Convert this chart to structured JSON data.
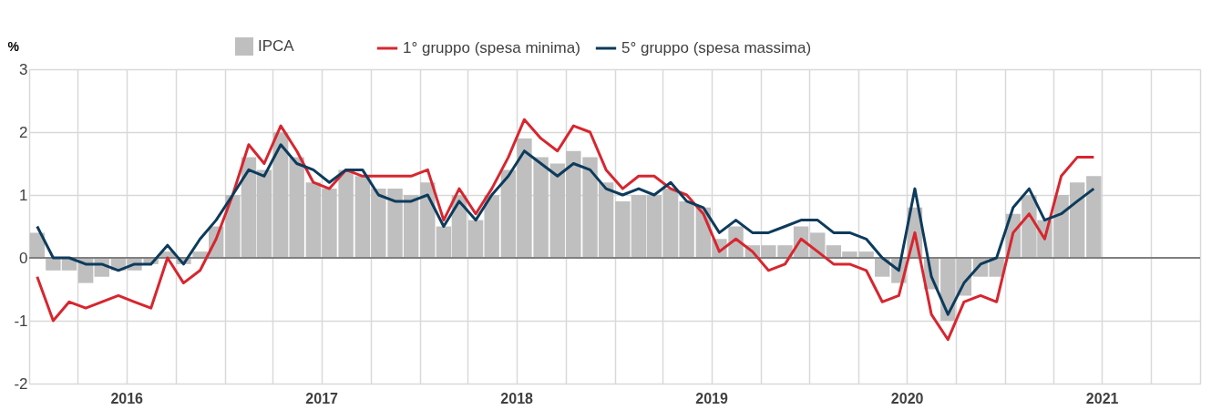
{
  "chart_data": {
    "type": "bar",
    "ylabel": "%",
    "ylim": [
      -2,
      3
    ],
    "yticks": [
      -2,
      -1,
      0,
      1,
      2,
      3
    ],
    "xlim": [
      "2016-01",
      "2022-01"
    ],
    "xticks": [
      {
        "value": "2016-01",
        "label": null
      },
      {
        "value": "2016-04",
        "label": null
      },
      {
        "value": "2016-07",
        "label": "2016"
      },
      {
        "value": "2016-10",
        "label": null
      },
      {
        "value": "2017-01",
        "label": null
      },
      {
        "value": "2017-04",
        "label": null
      },
      {
        "value": "2017-07",
        "label": "2017"
      },
      {
        "value": "2017-10",
        "label": null
      },
      {
        "value": "2018-01",
        "label": null
      },
      {
        "value": "2018-04",
        "label": null
      },
      {
        "value": "2018-07",
        "label": "2018"
      },
      {
        "value": "2018-10",
        "label": null
      },
      {
        "value": "2019-01",
        "label": null
      },
      {
        "value": "2019-04",
        "label": null
      },
      {
        "value": "2019-07",
        "label": "2019"
      },
      {
        "value": "2019-10",
        "label": null
      },
      {
        "value": "2020-01",
        "label": null
      },
      {
        "value": "2020-04",
        "label": null
      },
      {
        "value": "2020-07",
        "label": "2020"
      },
      {
        "value": "2020-10",
        "label": null
      },
      {
        "value": "2021-01",
        "label": null
      },
      {
        "value": "2021-04",
        "label": null
      },
      {
        "value": "2021-07",
        "label": "2021"
      },
      {
        "value": "2021-10",
        "label": null
      },
      {
        "value": "2022-01",
        "label": null
      }
    ],
    "x": [
      "2016-01-16",
      "2016-02-15",
      "2016-03-16",
      "2016-04-16",
      "2016-05-16",
      "2016-06-16",
      "2016-07-16",
      "2016-08-16",
      "2016-09-16",
      "2016-10-16",
      "2016-11-16",
      "2016-12-16",
      "2017-01-16",
      "2017-02-15",
      "2017-03-16",
      "2017-04-16",
      "2017-05-16",
      "2017-06-16",
      "2017-07-16",
      "2017-08-16",
      "2017-09-16",
      "2017-10-16",
      "2017-11-16",
      "2017-12-16",
      "2018-01-16",
      "2018-02-15",
      "2018-03-16",
      "2018-04-16",
      "2018-05-16",
      "2018-06-16",
      "2018-07-16",
      "2018-08-16",
      "2018-09-16",
      "2018-10-16",
      "2018-11-16",
      "2018-12-16",
      "2019-01-16",
      "2019-02-15",
      "2019-03-16",
      "2019-04-16",
      "2019-05-16",
      "2019-06-16",
      "2019-07-16",
      "2019-08-16",
      "2019-09-16",
      "2019-10-16",
      "2019-11-16",
      "2019-12-16",
      "2020-01-16",
      "2020-02-15",
      "2020-03-16",
      "2020-04-16",
      "2020-05-16",
      "2020-06-16",
      "2020-07-16",
      "2020-08-16",
      "2020-09-16",
      "2020-10-16",
      "2020-11-16",
      "2020-12-16",
      "2021-01-16",
      "2021-02-15",
      "2021-03-16",
      "2021-04-16",
      "2021-05-16",
      "2021-06-16"
    ],
    "series": [
      {
        "name": "IPCA",
        "color": "#bfbfbf",
        "values": [
          0.4,
          -0.2,
          -0.2,
          -0.4,
          -0.3,
          -0.2,
          -0.2,
          -0.1,
          0.1,
          -0.1,
          0.1,
          0.5,
          1.0,
          1.6,
          1.4,
          2.0,
          1.6,
          1.2,
          1.1,
          1.4,
          1.3,
          1.1,
          1.1,
          1.0,
          1.2,
          0.5,
          1.0,
          0.6,
          1.0,
          1.4,
          1.9,
          1.6,
          1.5,
          1.7,
          1.6,
          1.2,
          0.9,
          1.0,
          1.0,
          1.1,
          0.9,
          0.8,
          0.3,
          0.5,
          0.2,
          0.2,
          0.2,
          0.5,
          0.4,
          0.2,
          0.1,
          0.1,
          -0.3,
          -0.4,
          0.8,
          -0.5,
          -1.0,
          -0.6,
          -0.3,
          -0.3,
          0.7,
          1.0,
          0.6,
          1.0,
          1.2,
          1.3
        ]
      },
      {
        "name": "1° gruppo (spesa minima)",
        "type": "line",
        "color": "#d7262f",
        "values": [
          -0.3,
          -1.0,
          -0.7,
          -0.8,
          -0.7,
          -0.6,
          -0.7,
          -0.8,
          0.0,
          -0.4,
          -0.2,
          0.3,
          1.0,
          1.8,
          1.5,
          2.1,
          1.7,
          1.2,
          1.1,
          1.4,
          1.3,
          1.3,
          1.3,
          1.3,
          1.4,
          0.6,
          1.1,
          0.7,
          1.1,
          1.6,
          2.2,
          1.9,
          1.7,
          2.1,
          2.0,
          1.4,
          1.1,
          1.3,
          1.3,
          1.1,
          1.0,
          0.7,
          0.1,
          0.3,
          0.1,
          -0.2,
          -0.1,
          0.3,
          0.1,
          -0.1,
          -0.1,
          -0.2,
          -0.7,
          -0.6,
          0.4,
          -0.9,
          -1.3,
          -0.7,
          -0.6,
          -0.7,
          0.4,
          0.7,
          0.3,
          1.3,
          1.6,
          1.6
        ]
      },
      {
        "name": "5° gruppo (spesa massima)",
        "type": "line",
        "color": "#0d3b5c",
        "values": [
          0.5,
          0.0,
          0.0,
          -0.1,
          -0.1,
          -0.2,
          -0.1,
          -0.1,
          0.2,
          -0.1,
          0.3,
          0.6,
          1.0,
          1.4,
          1.3,
          1.8,
          1.5,
          1.4,
          1.2,
          1.4,
          1.4,
          1.0,
          0.9,
          0.9,
          1.0,
          0.5,
          0.9,
          0.6,
          1.0,
          1.3,
          1.7,
          1.5,
          1.3,
          1.5,
          1.4,
          1.1,
          1.0,
          1.1,
          1.0,
          1.2,
          0.9,
          0.8,
          0.4,
          0.6,
          0.4,
          0.4,
          0.5,
          0.6,
          0.6,
          0.4,
          0.4,
          0.3,
          0.0,
          -0.2,
          1.1,
          -0.3,
          -0.9,
          -0.4,
          -0.1,
          0.0,
          0.8,
          1.1,
          0.6,
          0.7,
          0.9,
          1.1
        ]
      }
    ],
    "ref_lines": [
      {
        "axis": "y",
        "value": 0,
        "color": "#808080"
      }
    ],
    "grid": true,
    "legend": "top",
    "line_style": "solid",
    "marker": "none"
  }
}
